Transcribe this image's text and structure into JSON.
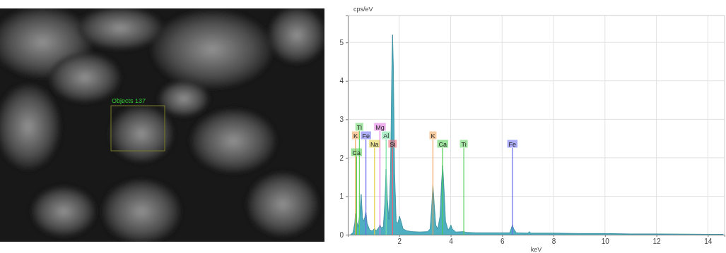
{
  "micrograph": {
    "label": "Objects 137"
  },
  "chart_data": {
    "type": "area",
    "y_label": "cps/eV",
    "x_label": "keV",
    "x": [
      0.1,
      0.2,
      0.27,
      0.3,
      0.34,
      0.4,
      0.46,
      0.52,
      0.57,
      0.62,
      0.66,
      0.7,
      0.75,
      0.85,
      0.95,
      1.04,
      1.1,
      1.2,
      1.25,
      1.3,
      1.38,
      1.44,
      1.49,
      1.54,
      1.6,
      1.66,
      1.71,
      1.74,
      1.77,
      1.82,
      1.88,
      1.95,
      2.01,
      2.07,
      2.15,
      2.3,
      2.5,
      2.8,
      3.1,
      3.2,
      3.26,
      3.31,
      3.36,
      3.42,
      3.5,
      3.59,
      3.64,
      3.69,
      3.74,
      3.8,
      3.9,
      3.96,
      4.01,
      4.06,
      4.2,
      4.51,
      4.6,
      5.0,
      5.5,
      6.3,
      6.35,
      6.4,
      6.45,
      6.55,
      7.0,
      7.06,
      7.12,
      8.0,
      9.0,
      10.0,
      11.0,
      12.0,
      13.0,
      14.0,
      14.6
    ],
    "series": [
      {
        "color": "#3aa6b9",
        "values": [
          0.0,
          0.05,
          0.3,
          0.55,
          0.35,
          0.2,
          0.5,
          1.05,
          0.45,
          0.35,
          0.45,
          0.6,
          0.3,
          0.12,
          0.1,
          0.16,
          0.1,
          0.18,
          0.26,
          0.18,
          0.2,
          0.8,
          1.7,
          0.9,
          0.4,
          1.6,
          4.2,
          5.2,
          4.4,
          1.6,
          0.35,
          0.3,
          0.48,
          0.35,
          0.15,
          0.1,
          0.08,
          0.07,
          0.08,
          0.15,
          0.7,
          1.3,
          0.8,
          0.25,
          0.15,
          0.5,
          1.3,
          1.8,
          1.2,
          0.35,
          0.12,
          0.18,
          0.25,
          0.15,
          0.07,
          0.08,
          0.06,
          0.05,
          0.05,
          0.05,
          0.15,
          0.25,
          0.15,
          0.05,
          0.04,
          0.08,
          0.04,
          0.04,
          0.03,
          0.03,
          0.02,
          0.02,
          0.015,
          0.01,
          0.01
        ]
      }
    ],
    "xlim": [
      0,
      14.65
    ],
    "xticks": [
      2,
      4,
      6,
      8,
      10,
      12,
      14
    ],
    "ylim": [
      0,
      5.7
    ],
    "yticks": [
      0,
      1,
      2,
      3,
      4,
      5
    ],
    "grid": true,
    "annotations": [
      {
        "label": "Ti",
        "x": 0.45,
        "color": "#5fd35f"
      },
      {
        "label": "K",
        "x": 0.3,
        "color": "#f0a050"
      },
      {
        "label": "Fe",
        "x": 0.705,
        "color": "#6a6af0"
      },
      {
        "label": "Ca",
        "x": 0.34,
        "color": "#4ccc4c"
      },
      {
        "label": "Mg",
        "x": 1.25,
        "color": "#e070e0"
      },
      {
        "label": "Na",
        "x": 1.04,
        "color": "#e0d040"
      },
      {
        "label": "Al",
        "x": 1.49,
        "color": "#70e0a0"
      },
      {
        "label": "Si",
        "x": 1.74,
        "color": "#f06070"
      },
      {
        "label": "K",
        "x": 3.31,
        "color": "#f0a050"
      },
      {
        "label": "Ca",
        "x": 3.69,
        "color": "#4ccc4c"
      },
      {
        "label": "Ti",
        "x": 4.51,
        "color": "#5fd35f"
      },
      {
        "label": "Fe",
        "x": 6.4,
        "color": "#6a6af0"
      }
    ]
  }
}
